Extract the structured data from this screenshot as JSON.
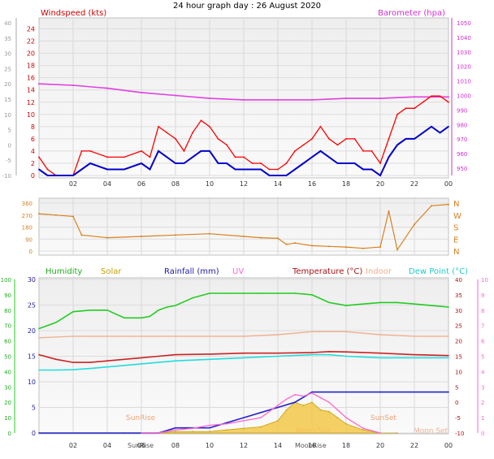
{
  "title": "24 hour graph day : 26 August 2020",
  "x_ticks": [
    "02",
    "04",
    "06",
    "08",
    "10",
    "12",
    "14",
    "16",
    "18",
    "20",
    "22",
    "00"
  ],
  "colors": {
    "wind": "#ff0000",
    "gust_base": "#0000cc",
    "baro": "#e040e0",
    "gray": "#b4b4b4",
    "dir": "#d98020",
    "humidity": "#22cc22",
    "solar": "#c8a000",
    "rain": "#2222cc",
    "uv": "#ff66cc",
    "temp": "#cc2222",
    "indoor": "#f0b090",
    "dew": "#22dddd",
    "axis_text": "#4a4a4a"
  },
  "chart_data": [
    {
      "type": "line",
      "panel": "wind-barometer",
      "left_label": "Windspeed (kts)",
      "right_label": "Barometer (hpa)",
      "left_ticks": [
        "24",
        "22",
        "20",
        "18",
        "16",
        "14",
        "12",
        "10",
        "8",
        "6",
        "4",
        "2",
        "0"
      ],
      "left_outer_ticks": [
        "40",
        "35",
        "30",
        "25",
        "20",
        "15",
        "10",
        "5",
        "0",
        "-5",
        "-10"
      ],
      "right_ticks": [
        "1050",
        "1040",
        "1030",
        "1020",
        "1010",
        "1000",
        "990",
        "980",
        "970",
        "960",
        "950"
      ],
      "ylim_left": [
        0,
        25
      ],
      "ylim_right": [
        945,
        1050
      ],
      "x_hours": [
        0,
        24
      ],
      "series": [
        {
          "key": "gust",
          "color": "red",
          "x": [
            0,
            0.5,
            1,
            2,
            2.5,
            3,
            4,
            5,
            6,
            6.5,
            7,
            7.5,
            8,
            8.5,
            9,
            9.5,
            10,
            10.5,
            11,
            11.5,
            12,
            12.5,
            13,
            13.5,
            14,
            14.5,
            15,
            15.5,
            16,
            16.5,
            17,
            17.5,
            18,
            18.5,
            19,
            19.5,
            20,
            20.5,
            21,
            21.5,
            22,
            22.5,
            23,
            23.5,
            24
          ],
          "y": [
            3,
            1,
            0,
            0,
            4,
            4,
            3,
            3,
            4,
            3,
            8,
            7,
            6,
            4,
            7,
            9,
            8,
            6,
            5,
            3,
            3,
            2,
            2,
            1,
            1,
            2,
            4,
            5,
            6,
            8,
            6,
            5,
            6,
            6,
            4,
            4,
            2,
            6,
            10,
            11,
            11,
            12,
            13,
            13,
            12
          ]
        },
        {
          "key": "speed",
          "color": "blue",
          "x": [
            0,
            0.5,
            1,
            2,
            2.5,
            3,
            4,
            5,
            6,
            6.5,
            7,
            7.5,
            8,
            8.5,
            9,
            9.5,
            10,
            10.5,
            11,
            11.5,
            12,
            12.5,
            13,
            13.5,
            14,
            14.5,
            15,
            15.5,
            16,
            16.5,
            17,
            17.5,
            18,
            18.5,
            19,
            19.5,
            20,
            20.5,
            21,
            21.5,
            22,
            22.5,
            23,
            23.5,
            24
          ],
          "y": [
            1,
            0,
            0,
            0,
            1,
            2,
            1,
            1,
            2,
            1,
            4,
            3,
            2,
            2,
            3,
            4,
            4,
            2,
            2,
            1,
            1,
            1,
            1,
            0,
            0,
            0,
            1,
            2,
            3,
            4,
            3,
            2,
            2,
            2,
            1,
            1,
            0,
            3,
            5,
            6,
            6,
            7,
            8,
            7,
            8
          ]
        },
        {
          "key": "barometer",
          "color": "magenta",
          "unit": "hpa",
          "x": [
            0,
            2,
            4,
            6,
            8,
            10,
            12,
            14,
            16,
            18,
            20,
            22,
            24
          ],
          "y": [
            1008,
            1007,
            1005,
            1002,
            1000,
            998,
            997,
            997,
            997,
            998,
            998,
            999,
            999
          ]
        }
      ]
    },
    {
      "type": "line",
      "panel": "wind-direction",
      "y_ticks": [
        "360",
        "270",
        "180",
        "90",
        "0"
      ],
      "right_labels": [
        "N",
        "W",
        "S",
        "E",
        "N"
      ],
      "ylim": [
        0,
        360
      ],
      "series": [
        {
          "key": "direction",
          "x": [
            0,
            1,
            2,
            2.5,
            4,
            6,
            8,
            10,
            12,
            13,
            14,
            14.5,
            15,
            16,
            17,
            18,
            19,
            20,
            20.5,
            21,
            22,
            23,
            24
          ],
          "y": [
            280,
            270,
            260,
            120,
            100,
            110,
            120,
            130,
            110,
            100,
            95,
            50,
            60,
            40,
            35,
            30,
            20,
            30,
            300,
            10,
            200,
            340,
            350
          ]
        }
      ]
    },
    {
      "type": "line",
      "panel": "humidity-temperature",
      "legend": [
        "Humidity",
        "Solar",
        "Rainfall (mm)",
        "UV",
        "Temperature (°C)",
        "Indoor",
        "Dew Point (°C)"
      ],
      "humidity_ticks": [
        "100",
        "90",
        "80",
        "70",
        "60",
        "50",
        "40",
        "30",
        "20",
        "10",
        "0"
      ],
      "rain_ticks": [
        "30",
        "25",
        "20",
        "15",
        "10",
        "5",
        "0"
      ],
      "temp_ticks": [
        "40",
        "35",
        "30",
        "25",
        "20",
        "15",
        "10",
        "5",
        "0",
        "-5",
        "-10"
      ],
      "uv_ticks": [
        "10",
        "9",
        "8",
        "7",
        "6",
        "5",
        "4",
        "3",
        "2",
        "1",
        "0"
      ],
      "annotations": [
        "SunRise",
        "SunSet",
        "Moon Set",
        "MoonRise",
        "SunRise",
        "Moon Set"
      ],
      "series": [
        {
          "key": "humidity",
          "ylim": [
            0,
            100
          ],
          "x": [
            0,
            1,
            2,
            3,
            4,
            5,
            6,
            6.5,
            7,
            7.5,
            8,
            9,
            10,
            11,
            12,
            13,
            14,
            15,
            16,
            17,
            18,
            19,
            20,
            21,
            22,
            23,
            24
          ],
          "y": [
            68,
            72,
            79,
            80,
            80,
            75,
            75,
            76,
            80,
            82,
            83,
            88,
            91,
            91,
            91,
            91,
            91,
            91,
            90,
            85,
            83,
            84,
            85,
            85,
            84,
            83,
            82
          ]
        },
        {
          "key": "indoor",
          "ylim": [
            -10,
            40
          ],
          "x": [
            0,
            2,
            4,
            6,
            8,
            10,
            12,
            14,
            16,
            18,
            20,
            22,
            24
          ],
          "y": [
            21,
            21.5,
            21.5,
            21.5,
            21.5,
            21.5,
            21.5,
            22,
            23,
            23,
            22,
            21.5,
            21.5
          ]
        },
        {
          "key": "temperature",
          "ylim": [
            -10,
            40
          ],
          "x": [
            0,
            1,
            2,
            3,
            4,
            5,
            6,
            7,
            8,
            10,
            12,
            14,
            16,
            17,
            18,
            20,
            22,
            24
          ],
          "y": [
            15.5,
            14,
            13,
            13,
            13.5,
            14,
            14.5,
            15,
            15.5,
            15.7,
            16,
            16,
            16.2,
            16.5,
            16.4,
            16,
            15.5,
            15.2
          ]
        },
        {
          "key": "dew_point",
          "ylim": [
            -10,
            40
          ],
          "x": [
            0,
            1,
            2,
            3,
            4,
            5,
            6,
            7,
            8,
            10,
            12,
            14,
            16,
            17,
            18,
            20,
            22,
            24
          ],
          "y": [
            10.5,
            10.5,
            10.6,
            11,
            11.5,
            12,
            12.5,
            13,
            13.5,
            14,
            14.5,
            15,
            15.5,
            15.5,
            15,
            14.5,
            14.5,
            14.5
          ]
        },
        {
          "key": "rainfall",
          "ylim": [
            0,
            30
          ],
          "x": [
            0,
            5,
            6,
            7,
            8,
            9,
            10,
            11,
            12,
            13,
            14,
            15,
            16,
            20,
            24
          ],
          "y": [
            0,
            0,
            0,
            0,
            1,
            1,
            1,
            2,
            3,
            4,
            5,
            6,
            8,
            8,
            8
          ]
        },
        {
          "key": "solar",
          "ylim": [
            0,
            100
          ],
          "x": [
            6,
            7,
            8,
            9,
            10,
            11,
            12,
            13,
            14,
            14.5,
            15,
            15.5,
            16,
            16.5,
            17,
            17.5,
            18,
            19,
            20,
            21
          ],
          "y": [
            0,
            0,
            1,
            1,
            1,
            2,
            3,
            4,
            8,
            15,
            20,
            18,
            20,
            15,
            14,
            10,
            6,
            2,
            0,
            0
          ]
        },
        {
          "key": "uv",
          "ylim": [
            0,
            10
          ],
          "x": [
            6,
            7,
            8,
            9,
            10,
            11,
            12,
            13,
            14,
            14.5,
            15,
            15.5,
            16,
            16.5,
            17,
            17.5,
            18,
            19,
            20
          ],
          "y": [
            0,
            0,
            0.2,
            0.3,
            0.5,
            0.6,
            0.8,
            1.0,
            1.8,
            2.2,
            2.5,
            2.4,
            2.6,
            2.3,
            2.0,
            1.5,
            1.0,
            0.3,
            0
          ]
        }
      ]
    }
  ]
}
